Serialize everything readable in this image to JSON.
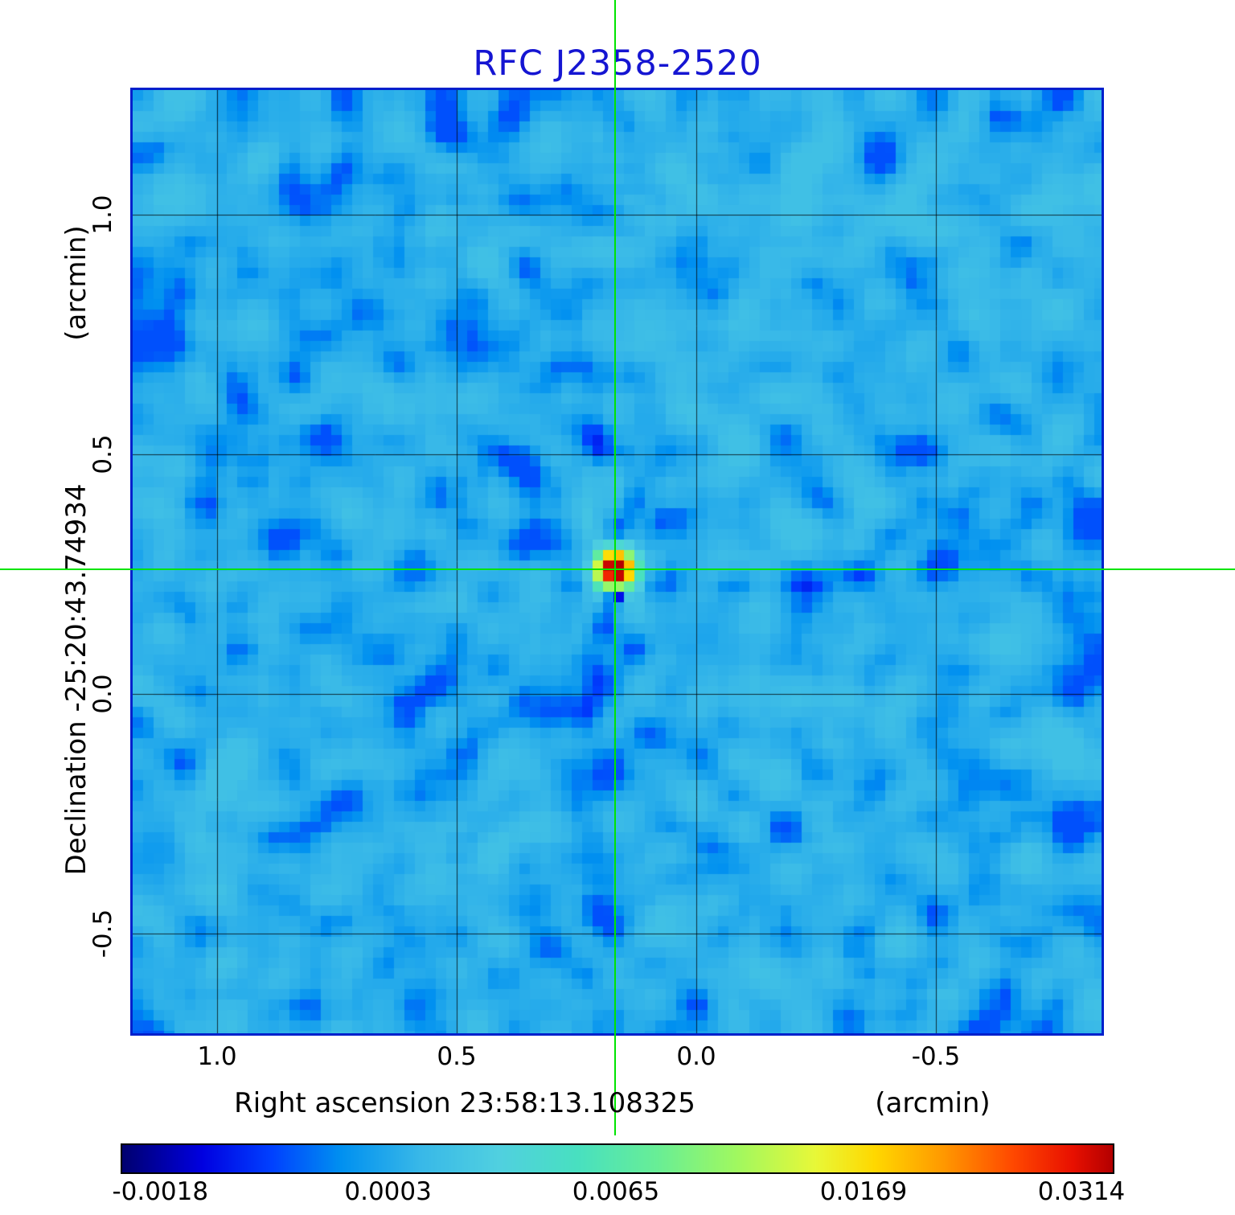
{
  "title": "RFC J2358-2520",
  "colors": {
    "title": "#1515d2",
    "frame": "#0020cc",
    "crosshair": "#00e400",
    "grid": "rgba(0,0,0,0.75)",
    "background": "#ffffff"
  },
  "axes": {
    "x_label": "Right ascension  23:58:13.108325",
    "x_unit": "(arcmin)",
    "y_label": "Declination  -25:20:43.74934",
    "y_unit": "(arcmin)",
    "x_tick_labels": [
      "1.0",
      "0.5",
      "0.0",
      "-0.5"
    ],
    "y_tick_labels": [
      "1.0",
      "0.5",
      "0.0",
      "-0.5"
    ]
  },
  "colorbar": {
    "tick_labels": [
      "-0.0018",
      "0.0003",
      "0.0065",
      "0.0169",
      "0.0314"
    ],
    "tick_values": [
      -0.0018,
      0.0003,
      0.0065,
      0.0169,
      0.0314
    ]
  },
  "chart_data": {
    "type": "heatmap",
    "title": "RFC J2358-2520",
    "xlabel": "Right ascension 23:58:13.108325 (arcmin)",
    "ylabel": "Declination -25:20:43.74934 (arcmin)",
    "x_range_arcmin": [
      1.18,
      -0.85
    ],
    "y_range_arcmin": [
      1.26,
      -0.71
    ],
    "x_ticks": [
      1.0,
      0.5,
      0.0,
      -0.5
    ],
    "y_ticks": [
      1.0,
      0.5,
      0.0,
      -0.5
    ],
    "grid": true,
    "crosshair_arcmin": {
      "x": 0.17,
      "y": 0.26
    },
    "source": {
      "x_arcmin": 0.17,
      "y_arcmin": 0.26,
      "peak_value": 0.0314,
      "negative_sidelobe_value": -0.0018
    },
    "background_mean": 0.0006,
    "background_rms": 0.00055,
    "value_scale": {
      "values": [
        -0.0018,
        0.0003,
        0.0065,
        0.0169,
        0.0314
      ],
      "fractions": [
        0.04,
        0.27,
        0.5,
        0.75,
        0.97
      ]
    },
    "colormap_stops": [
      [
        0.0,
        "#000070"
      ],
      [
        0.08,
        "#0000e0"
      ],
      [
        0.15,
        "#0040ff"
      ],
      [
        0.22,
        "#0090f0"
      ],
      [
        0.3,
        "#38b8e8"
      ],
      [
        0.38,
        "#50d0e0"
      ],
      [
        0.46,
        "#48e0c0"
      ],
      [
        0.54,
        "#68ee96"
      ],
      [
        0.62,
        "#a0f860"
      ],
      [
        0.7,
        "#e8f838"
      ],
      [
        0.76,
        "#ffd800"
      ],
      [
        0.83,
        "#ff9800"
      ],
      [
        0.9,
        "#ff4800"
      ],
      [
        0.96,
        "#e81000"
      ],
      [
        1.0,
        "#b40000"
      ]
    ],
    "legend_position": "bottom-colorbar"
  }
}
